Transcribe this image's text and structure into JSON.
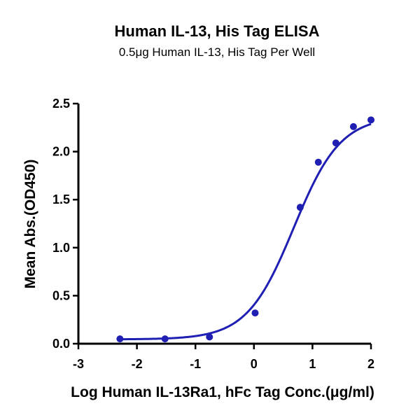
{
  "chart_data": {
    "type": "scatter",
    "title": "Human IL-13, His Tag ELISA",
    "subtitle": "0.5μg Human IL-13, His Tag Per Well",
    "xlabel": "Log Human IL-13Ra1, hFc Tag Conc.(μg/ml)",
    "ylabel": "Mean Abs.(OD450)",
    "xlim": [
      -3,
      2
    ],
    "ylim": [
      0,
      2.5
    ],
    "xticks": [
      "-3",
      "-2",
      "-1",
      "0",
      "1",
      "2"
    ],
    "yticks": [
      "0.0",
      "0.5",
      "1.0",
      "1.5",
      "2.0",
      "2.5"
    ],
    "grid": false,
    "color": "#1f1fb4",
    "series": [
      {
        "x": [
          -2.29,
          -1.52,
          -0.76,
          0.02,
          0.79,
          1.1,
          1.4,
          1.7,
          2.0
        ],
        "y": [
          0.05,
          0.05,
          0.07,
          0.32,
          1.42,
          1.89,
          2.09,
          2.26,
          2.33
        ],
        "fit": "sigmoidal"
      }
    ]
  }
}
